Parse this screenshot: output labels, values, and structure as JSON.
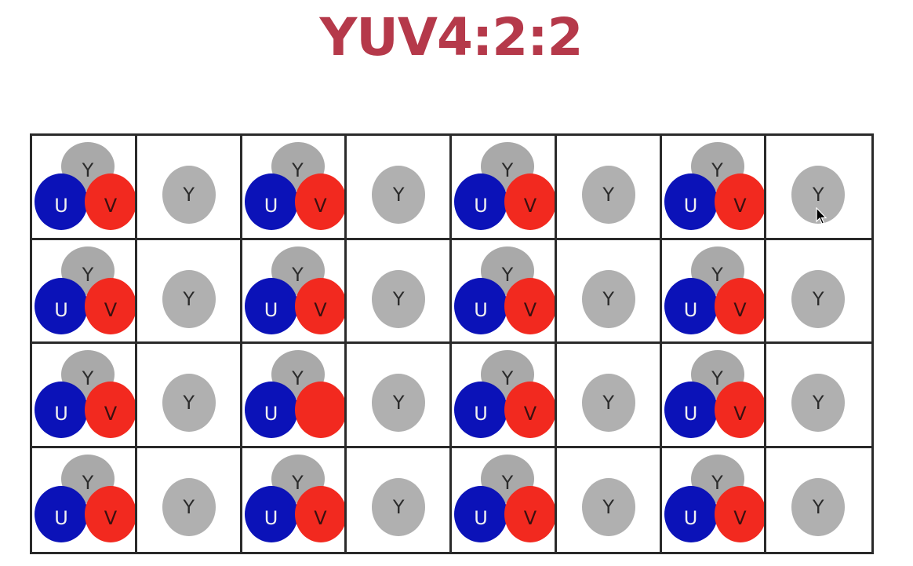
{
  "title": "YUV4:2:2",
  "labels": {
    "y": "Y",
    "u": "U",
    "v": "V"
  },
  "colors": {
    "title": "#b5394a",
    "y": "#a9a9a9",
    "u": "#0b12b8",
    "v": "#f2291f",
    "grid_line": "#2a2a2a"
  },
  "grid": {
    "rows": 4,
    "cols": 8,
    "cells": [
      [
        "yuv",
        "y",
        "yuv",
        "y",
        "yuv",
        "y",
        "yuv",
        "y"
      ],
      [
        "yuv",
        "y",
        "yuv",
        "y",
        "yuv",
        "y",
        "yuv",
        "y"
      ],
      [
        "yuv",
        "y",
        "yu_v_unlabeled",
        "y",
        "yuv",
        "y",
        "yuv",
        "y"
      ],
      [
        "yuv",
        "y",
        "yuv",
        "y",
        "yuv",
        "y",
        "yuv",
        "y"
      ]
    ]
  },
  "icons": {
    "cursor": "mouse-pointer-icon"
  }
}
